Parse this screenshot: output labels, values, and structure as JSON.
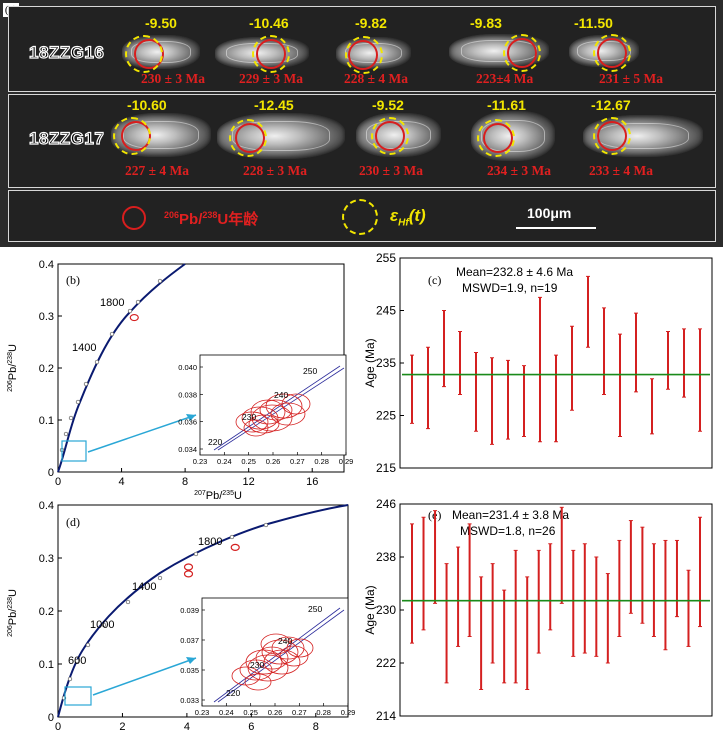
{
  "panel_a": {
    "label": "(a)",
    "rows": [
      {
        "sample": "18ZZG16",
        "grains": [
          {
            "ehf": "-9.50",
            "age": "230 ± 3 Ma"
          },
          {
            "ehf": "-10.46",
            "age": "229 ± 3 Ma"
          },
          {
            "ehf": "-9.82",
            "age": "228 ± 4 Ma"
          },
          {
            "ehf": "-9.83",
            "age": "223±4 Ma"
          },
          {
            "ehf": "-11.50",
            "age": "231 ± 5 Ma"
          }
        ]
      },
      {
        "sample": "18ZZG17",
        "grains": [
          {
            "ehf": "-10.60",
            "age": "227 ± 4 Ma"
          },
          {
            "ehf": "-12.45",
            "age": "228 ± 3 Ma"
          },
          {
            "ehf": "-9.52",
            "age": "230 ± 3 Ma"
          },
          {
            "ehf": "-11.61",
            "age": "234 ± 3 Ma"
          },
          {
            "ehf": "-12.67",
            "age": "233 ± 4 Ma"
          }
        ]
      }
    ],
    "legend": {
      "red_sup1": "206",
      "red_mid": "Pb/",
      "red_sup2": "238",
      "red_tail": "U年龄",
      "yel_main": "ε",
      "yel_sub": "Hf",
      "yel_tail": "(t)",
      "scale": "100μm"
    },
    "colors": {
      "age": "#e02020",
      "ehf": "#f2e600",
      "background": "#2b2b2b"
    }
  },
  "chart_data": [
    {
      "id": "b",
      "type": "scatter",
      "label": "(b)",
      "xlabel_sup": "207",
      "xlabel_mid": "Pb/",
      "xlabel_sup2": "235",
      "xlabel_tail": "U",
      "ylabel_sup": "206",
      "ylabel_mid": "Pb/",
      "ylabel_sup2": "238",
      "ylabel_tail": "U",
      "xlim": [
        0,
        18
      ],
      "ylim": [
        0,
        0.4
      ],
      "xticks": [
        "0",
        "4",
        "8",
        "12",
        "16"
      ],
      "yticks": [
        "0",
        "0.1",
        "0.2",
        "0.3",
        "0.4"
      ],
      "concordia_labels": [
        "1400",
        "1800"
      ],
      "discordant_points": [
        {
          "x": 4.8,
          "y": 0.297
        }
      ],
      "inset": {
        "xlim": [
          0.23,
          0.29
        ],
        "ylim": [
          0.034,
          0.041
        ],
        "xticks": [
          "0.23",
          "0.24",
          "0.25",
          "0.26",
          "0.27",
          "0.28",
          "0.29"
        ],
        "yticks": [
          "0.034",
          "0.036",
          "0.038",
          "0.040"
        ],
        "age_labels": [
          "220",
          "230",
          "240",
          "250"
        ]
      }
    },
    {
      "id": "c",
      "type": "bar",
      "label": "(c)",
      "annotation_line1": "Mean=232.8 ± 4.6 Ma",
      "annotation_line2": "MSWD=1.9, n=19",
      "ylabel": "Age (Ma)",
      "ylim": [
        215,
        255
      ],
      "yticks": [
        "215",
        "225",
        "235",
        "245",
        "255"
      ],
      "mean": 232.8,
      "error_bars": [
        {
          "low": 223.5,
          "high": 236.5
        },
        {
          "low": 222.5,
          "high": 238.0
        },
        {
          "low": 230.5,
          "high": 245.0
        },
        {
          "low": 229.0,
          "high": 241.0
        },
        {
          "low": 222.0,
          "high": 237.0
        },
        {
          "low": 219.5,
          "high": 236.0
        },
        {
          "low": 220.5,
          "high": 235.5
        },
        {
          "low": 221.0,
          "high": 234.5
        },
        {
          "low": 220.0,
          "high": 247.5
        },
        {
          "low": 220.0,
          "high": 236.5
        },
        {
          "low": 226.0,
          "high": 242.0
        },
        {
          "low": 238.0,
          "high": 251.5
        },
        {
          "low": 229.0,
          "high": 245.5
        },
        {
          "low": 221.0,
          "high": 240.5
        },
        {
          "low": 229.5,
          "high": 244.5
        },
        {
          "low": 221.5,
          "high": 232.0
        },
        {
          "low": 230.0,
          "high": 241.0
        },
        {
          "low": 228.5,
          "high": 241.5
        },
        {
          "low": 222.0,
          "high": 241.5
        }
      ],
      "colors": {
        "bars": "#d42020",
        "mean_line": "#1a8a1a"
      }
    },
    {
      "id": "d",
      "type": "scatter",
      "label": "(d)",
      "ylabel_sup": "206",
      "ylabel_mid": "Pb/",
      "ylabel_sup2": "238",
      "ylabel_tail": "U",
      "xlim": [
        0,
        9
      ],
      "ylim": [
        0,
        0.4
      ],
      "xticks": [
        "0",
        "2",
        "4",
        "6",
        "8"
      ],
      "yticks": [
        "0",
        "0.1",
        "0.2",
        "0.3",
        "0.4"
      ],
      "concordia_labels": [
        "600",
        "1000",
        "1400",
        "1800"
      ],
      "discordant_points": [
        {
          "x": 4.05,
          "y": 0.283
        },
        {
          "x": 4.05,
          "y": 0.27
        },
        {
          "x": 5.5,
          "y": 0.32
        }
      ],
      "inset": {
        "xlim": [
          0.23,
          0.295
        ],
        "ylim": [
          0.033,
          0.0395
        ],
        "xticks": [
          "0.23",
          "0.24",
          "0.25",
          "0.26",
          "0.27",
          "0.28",
          "0.29"
        ],
        "yticks": [
          "0.033",
          "0.035",
          "0.037",
          "0.039"
        ],
        "age_labels": [
          "220",
          "230",
          "240",
          "250"
        ]
      }
    },
    {
      "id": "e",
      "type": "bar",
      "label": "(e)",
      "annotation_line1": "Mean=231.4 ± 3.8 Ma",
      "annotation_line2": "MSWD=1.8, n=26",
      "ylabel": "Age (Ma)",
      "ylim": [
        214,
        246
      ],
      "yticks": [
        "214",
        "222",
        "230",
        "238",
        "246"
      ],
      "mean": 231.4,
      "error_bars": [
        {
          "low": 225.0,
          "high": 243.0
        },
        {
          "low": 227.0,
          "high": 244.0
        },
        {
          "low": 231.0,
          "high": 245.0
        },
        {
          "low": 219.0,
          "high": 237.0
        },
        {
          "low": 224.5,
          "high": 239.5
        },
        {
          "low": 226.0,
          "high": 243.0
        },
        {
          "low": 218.0,
          "high": 235.0
        },
        {
          "low": 222.0,
          "high": 237.0
        },
        {
          "low": 219.0,
          "high": 233.0
        },
        {
          "low": 219.0,
          "high": 239.0
        },
        {
          "low": 218.0,
          "high": 235.0
        },
        {
          "low": 223.5,
          "high": 239.0
        },
        {
          "low": 227.0,
          "high": 240.0
        },
        {
          "low": 231.0,
          "high": 245.5
        },
        {
          "low": 223.0,
          "high": 239.0
        },
        {
          "low": 223.5,
          "high": 240.0
        },
        {
          "low": 223.0,
          "high": 238.0
        },
        {
          "low": 222.0,
          "high": 235.5
        },
        {
          "low": 226.0,
          "high": 240.5
        },
        {
          "low": 229.5,
          "high": 243.5
        },
        {
          "low": 228.0,
          "high": 242.5
        },
        {
          "low": 226.0,
          "high": 240.0
        },
        {
          "low": 224.0,
          "high": 240.5
        },
        {
          "low": 229.0,
          "high": 240.5
        },
        {
          "low": 224.5,
          "high": 236.0
        },
        {
          "low": 227.5,
          "high": 244.0
        }
      ],
      "colors": {
        "bars": "#d42020",
        "mean_line": "#1a8a1a"
      }
    }
  ]
}
